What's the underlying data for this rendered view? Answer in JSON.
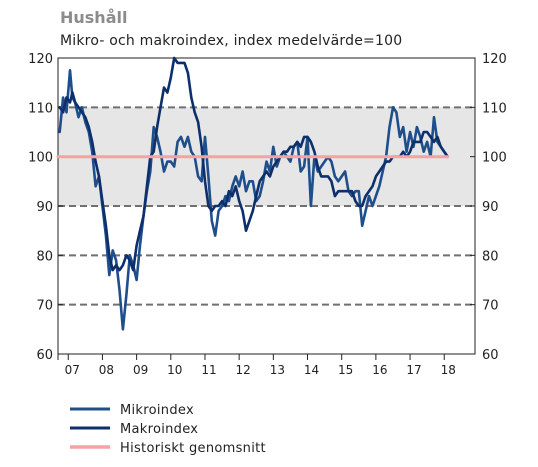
{
  "title": "Hushåll",
  "subtitle": "Mikro- och makroindex, index medelvärde=100",
  "chart_data": {
    "type": "line",
    "x_tick_labels": [
      "07",
      "08",
      "09",
      "10",
      "11",
      "12",
      "13",
      "14",
      "15",
      "16",
      "17",
      "18"
    ],
    "x_range": [
      2006.7,
      2018.9
    ],
    "ylim": [
      60,
      120
    ],
    "yticks": [
      60,
      70,
      80,
      90,
      100,
      110,
      120
    ],
    "shaded_band": [
      90,
      110
    ],
    "dashed_gridlines": [
      70,
      80,
      90,
      110
    ],
    "legend_position": "bottom-left",
    "series": [
      {
        "name": "Mikroindex",
        "color": "#1f4e8c",
        "x": [
          2006.75,
          2006.85,
          2006.95,
          2007.05,
          2007.12,
          2007.2,
          2007.3,
          2007.4,
          2007.5,
          2007.6,
          2007.7,
          2007.8,
          2007.9,
          2008.0,
          2008.1,
          2008.2,
          2008.3,
          2008.4,
          2008.5,
          2008.6,
          2008.7,
          2008.8,
          2008.9,
          2009.0,
          2009.1,
          2009.2,
          2009.3,
          2009.4,
          2009.5,
          2009.6,
          2009.7,
          2009.8,
          2009.9,
          2010.0,
          2010.1,
          2010.2,
          2010.3,
          2010.4,
          2010.5,
          2010.6,
          2010.7,
          2010.8,
          2010.9,
          2011.0,
          2011.1,
          2011.2,
          2011.3,
          2011.4,
          2011.5,
          2011.6,
          2011.7,
          2011.8,
          2011.9,
          2012.0,
          2012.1,
          2012.2,
          2012.3,
          2012.4,
          2012.5,
          2012.6,
          2012.7,
          2012.8,
          2012.9,
          2013.0,
          2013.1,
          2013.2,
          2013.3,
          2013.4,
          2013.5,
          2013.6,
          2013.7,
          2013.8,
          2013.9,
          2014.0,
          2014.1,
          2014.2,
          2014.3,
          2014.4,
          2014.5,
          2014.6,
          2014.7,
          2014.8,
          2014.9,
          2015.0,
          2015.1,
          2015.2,
          2015.3,
          2015.4,
          2015.5,
          2015.6,
          2015.7,
          2015.8,
          2015.9,
          2016.0,
          2016.1,
          2016.2,
          2016.3,
          2016.4,
          2016.5,
          2016.6,
          2016.7,
          2016.8,
          2016.9,
          2017.0,
          2017.1,
          2017.2,
          2017.3,
          2017.4,
          2017.5,
          2017.6,
          2017.7,
          2017.8,
          2017.9,
          2018.0,
          2018.1
        ],
        "values": [
          105,
          112,
          109,
          117.5,
          112,
          111,
          108,
          110,
          107,
          105,
          101,
          94,
          96,
          90,
          84,
          76,
          81,
          79,
          73,
          65,
          72,
          80,
          78,
          75,
          82,
          88,
          93,
          97,
          106,
          104,
          101,
          97,
          99,
          99,
          98,
          103,
          104,
          102,
          104,
          101,
          100,
          96,
          95,
          104,
          96,
          87,
          84,
          89,
          90,
          92,
          91,
          94,
          96,
          94,
          97,
          93,
          95,
          95,
          91,
          92,
          95,
          99,
          97,
          102,
          98,
          100,
          101,
          100,
          99,
          102,
          103,
          97,
          98,
          104,
          90,
          100,
          97,
          98,
          99,
          100,
          99,
          96,
          95,
          96,
          97,
          93,
          92,
          93,
          93,
          86,
          89,
          92,
          90,
          92,
          94,
          97,
          100,
          106,
          110,
          109,
          104,
          106,
          101,
          105,
          102,
          106,
          104,
          101,
          103,
          100,
          108,
          103,
          102,
          101,
          100
        ]
      },
      {
        "name": "Makroindex",
        "color": "#0d2f6b",
        "x": [
          2006.75,
          2006.85,
          2006.95,
          2007.05,
          2007.12,
          2007.2,
          2007.3,
          2007.4,
          2007.5,
          2007.6,
          2007.7,
          2007.8,
          2007.9,
          2008.0,
          2008.1,
          2008.2,
          2008.3,
          2008.4,
          2008.5,
          2008.6,
          2008.7,
          2008.8,
          2008.9,
          2009.0,
          2009.1,
          2009.2,
          2009.3,
          2009.4,
          2009.5,
          2009.6,
          2009.7,
          2009.8,
          2009.9,
          2010.0,
          2010.1,
          2010.2,
          2010.3,
          2010.4,
          2010.5,
          2010.6,
          2010.7,
          2010.8,
          2010.9,
          2011.0,
          2011.1,
          2011.2,
          2011.3,
          2011.4,
          2011.5,
          2011.6,
          2011.7,
          2011.8,
          2011.9,
          2012.0,
          2012.1,
          2012.2,
          2012.3,
          2012.4,
          2012.5,
          2012.6,
          2012.7,
          2012.8,
          2012.9,
          2013.0,
          2013.1,
          2013.2,
          2013.3,
          2013.4,
          2013.5,
          2013.6,
          2013.7,
          2013.8,
          2013.9,
          2014.0,
          2014.1,
          2014.2,
          2014.3,
          2014.4,
          2014.5,
          2014.6,
          2014.7,
          2014.8,
          2014.9,
          2015.0,
          2015.1,
          2015.2,
          2015.3,
          2015.4,
          2015.5,
          2015.6,
          2015.7,
          2015.8,
          2015.9,
          2016.0,
          2016.1,
          2016.2,
          2016.3,
          2016.4,
          2016.5,
          2016.6,
          2016.7,
          2016.8,
          2016.9,
          2017.0,
          2017.1,
          2017.2,
          2017.3,
          2017.4,
          2017.5,
          2017.6,
          2017.7,
          2017.8,
          2017.9,
          2018.0,
          2018.1
        ],
        "values": [
          110,
          109,
          112,
          111,
          113,
          111,
          110,
          109,
          108,
          106,
          103,
          99,
          96,
          91,
          86,
          80,
          77,
          78,
          77,
          78,
          80,
          79,
          77,
          82,
          85,
          88,
          94,
          100,
          101,
          106,
          110,
          114,
          113,
          116,
          120,
          119,
          119,
          119,
          117,
          112,
          109,
          107,
          102,
          95,
          90,
          89,
          90,
          90,
          91,
          90,
          93,
          92,
          94,
          91,
          89,
          85,
          87,
          89,
          92,
          95,
          96,
          97,
          96,
          98,
          99,
          100,
          101,
          101,
          102,
          102,
          103,
          102,
          104,
          104,
          103,
          101,
          98,
          96,
          96,
          96,
          95,
          92,
          93,
          93,
          93,
          93,
          93,
          91,
          90,
          90,
          92,
          93,
          94,
          96,
          97,
          98,
          99,
          99,
          100,
          100,
          100,
          101,
          100,
          101,
          103,
          103,
          103,
          105,
          105,
          104,
          103,
          104,
          102,
          101,
          100
        ]
      },
      {
        "name": "Historiskt genomsnitt",
        "color": "#f4a2a2",
        "x": [
          2006.7,
          2018.1
        ],
        "values": [
          100,
          100
        ]
      }
    ]
  }
}
